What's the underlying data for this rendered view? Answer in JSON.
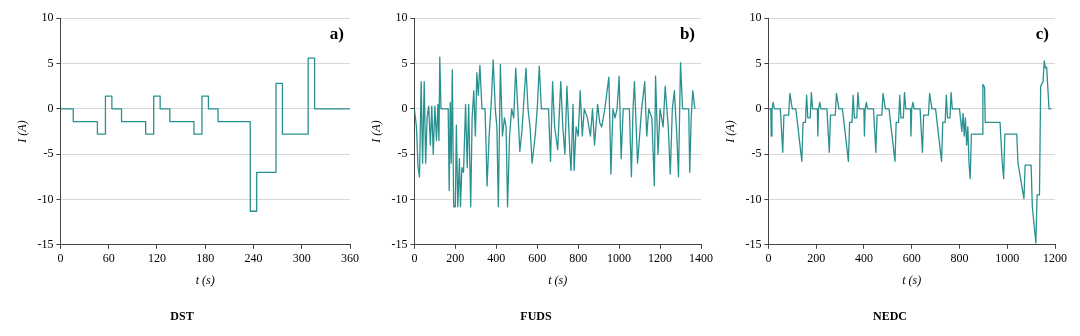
{
  "chart_data": [
    {
      "type": "line",
      "title": "DST",
      "xlabel": "t (s)",
      "ylabel": "I (A)",
      "annotations": [
        "a)"
      ],
      "grid": "y",
      "legend": false,
      "marker": "none",
      "line_style": "solid",
      "xlim": [
        0,
        360
      ],
      "xticks": [
        0,
        60,
        120,
        180,
        240,
        300,
        360
      ],
      "ylim": [
        -15,
        10
      ],
      "yticks": [
        -15,
        -10,
        -5,
        0,
        5,
        10
      ],
      "series": [
        {
          "color": "#2a9090",
          "x": [
            0,
            16,
            16,
            46,
            46,
            56,
            56,
            64,
            64,
            76,
            76,
            106,
            106,
            116,
            116,
            124,
            124,
            136,
            136,
            166,
            166,
            176,
            176,
            184,
            184,
            196,
            196,
            236,
            236,
            244,
            244,
            268,
            268,
            276,
            276,
            308,
            308,
            316,
            316,
            360
          ],
          "values": [
            0,
            0,
            -1.4,
            -1.4,
            -2.8,
            -2.8,
            1.4,
            1.4,
            0,
            0,
            -1.4,
            -1.4,
            -2.8,
            -2.8,
            1.4,
            1.4,
            0,
            0,
            -1.4,
            -1.4,
            -2.8,
            -2.8,
            1.4,
            1.4,
            0,
            0,
            -1.4,
            -1.4,
            -11.3,
            -11.3,
            -7,
            -7,
            2.8,
            2.8,
            -2.8,
            -2.8,
            5.6,
            5.6,
            0,
            0
          ]
        }
      ]
    },
    {
      "type": "line",
      "title": "FUDS",
      "xlabel": "t (s)",
      "ylabel": "I (A)",
      "annotations": [
        "b)"
      ],
      "grid": "y",
      "legend": false,
      "marker": "none",
      "line_style": "solid",
      "xlim": [
        0,
        1400
      ],
      "xticks": [
        0,
        200,
        400,
        600,
        800,
        1000,
        1200,
        1400
      ],
      "ylim": [
        -15,
        10
      ],
      "yticks": [
        -15,
        -10,
        -5,
        0,
        5,
        10
      ],
      "series": [
        {
          "color": "#2a9090",
          "x": [
            0,
            10,
            18,
            25,
            33,
            40,
            48,
            55,
            62,
            70,
            78,
            85,
            92,
            100,
            108,
            115,
            120,
            124,
            130,
            165,
            170,
            175,
            180,
            185,
            192,
            200,
            205,
            212,
            220,
            225,
            232,
            240,
            250,
            258,
            265,
            275,
            282,
            290,
            298,
            305,
            312,
            320,
            330,
            345,
            350,
            355,
            365,
            375,
            385,
            395,
            403,
            410,
            420,
            430,
            440,
            448,
            455,
            465,
            475,
            485,
            495,
            505,
            515,
            525,
            545,
            555,
            565,
            575,
            590,
            600,
            610,
            620,
            655,
            665,
            675,
            685,
            700,
            715,
            725,
            735,
            745,
            760,
            765,
            775,
            780,
            790,
            800,
            810,
            820,
            830,
            845,
            860,
            870,
            880,
            895,
            905,
            915,
            930,
            950,
            960,
            970,
            980,
            990,
            1000,
            1010,
            1020,
            1050,
            1060,
            1068,
            1075,
            1090,
            1100,
            1110,
            1125,
            1135,
            1145,
            1160,
            1172,
            1178,
            1190,
            1200,
            1215,
            1225,
            1240,
            1250,
            1260,
            1270,
            1282,
            1290,
            1300,
            1310,
            1340,
            1345,
            1352,
            1360,
            1370
          ],
          "values": [
            0,
            -2,
            -6.5,
            -7.5,
            3,
            -6,
            3,
            -6,
            -1,
            0.3,
            -4,
            0.3,
            -5,
            0.3,
            -3.5,
            0.5,
            -3.5,
            5.7,
            0,
            0,
            -9,
            0.7,
            -6,
            4.3,
            -10.8,
            -10.8,
            -1.8,
            -10.8,
            -5.5,
            -10.8,
            -6.5,
            -7,
            0.5,
            -6.5,
            0.5,
            -10.8,
            -1,
            2,
            -3,
            4,
            1.5,
            4.8,
            0,
            0,
            -4,
            -8.5,
            -3,
            0.5,
            5.4,
            0,
            -2,
            -10.8,
            4.9,
            -3,
            -1,
            -2,
            -10.8,
            -3,
            0,
            -1,
            4.5,
            0,
            -4.7,
            -2.5,
            4.5,
            0,
            -2,
            -6,
            -3,
            0,
            4.7,
            0,
            0,
            -5.8,
            3,
            -2,
            -4.5,
            3,
            -2,
            -5,
            2.5,
            -5,
            -6.8,
            0.5,
            -6.8,
            -2,
            -3,
            2,
            -3,
            0,
            -1,
            -3,
            0,
            -4,
            0.5,
            -1.5,
            -2,
            0,
            3.5,
            -7.2,
            0,
            -1,
            0,
            3.6,
            -5.5,
            0,
            0,
            -7.5,
            0,
            3,
            -6,
            -3,
            0,
            3,
            -3,
            0,
            -1,
            -8.5,
            3.6,
            -5,
            0,
            -2,
            2.5,
            -2,
            -7.2,
            0,
            2,
            -3,
            -7.5,
            5.1,
            0,
            0,
            -7,
            -1,
            2,
            0
          ]
        }
      ]
    },
    {
      "type": "line",
      "title": "NEDC",
      "xlabel": "t (s)",
      "ylabel": "I (A)",
      "annotations": [
        "c)"
      ],
      "grid": "y",
      "legend": false,
      "marker": "none",
      "line_style": "solid",
      "xlim": [
        0,
        1200
      ],
      "xticks": [
        0,
        200,
        400,
        600,
        800,
        1000,
        1200
      ],
      "ylim": [
        -15,
        10
      ],
      "yticks": [
        -15,
        -10,
        -5,
        0,
        5,
        10
      ],
      "series": [
        {
          "color": "#2a9090",
          "x": [
            0,
            10,
            12,
            15,
            20,
            25,
            50,
            60,
            65,
            85,
            90,
            100,
            115,
            140,
            145,
            155,
            160,
            165,
            175,
            180,
            185,
            205,
            207,
            210,
            215,
            220,
            245,
            255,
            260,
            280,
            285,
            295,
            310,
            335,
            340,
            350,
            355,
            360,
            370,
            375,
            380,
            400,
            402,
            405,
            410,
            415,
            440,
            450,
            455,
            475,
            480,
            490,
            505,
            530,
            535,
            545,
            550,
            555,
            565,
            570,
            575,
            595,
            597,
            600,
            605,
            610,
            635,
            645,
            650,
            670,
            675,
            685,
            700,
            725,
            730,
            740,
            745,
            750,
            760,
            765,
            770,
            780,
            800,
            810,
            815,
            820,
            825,
            830,
            835,
            840,
            845,
            850,
            895,
            898,
            905,
            908,
            970,
            978,
            985,
            990,
            1040,
            1045,
            1070,
            1075,
            1100,
            1105,
            1120,
            1125,
            1135,
            1140,
            1150,
            1155,
            1160,
            1165,
            1175,
            1185
          ],
          "values": [
            0,
            0,
            -3,
            0,
            0.7,
            0,
            0,
            -4.8,
            -0.7,
            -0.7,
            1.7,
            0,
            0,
            -5.8,
            -1.5,
            -1.5,
            1.5,
            -1,
            -1,
            1.8,
            0,
            0,
            -3,
            0,
            0.7,
            0,
            0,
            -4.8,
            -0.7,
            -0.7,
            1.7,
            0,
            0,
            -5.8,
            -1.5,
            -1.5,
            1.5,
            -1,
            -1,
            1.8,
            0,
            0,
            -3,
            0,
            0.7,
            0,
            0,
            -4.8,
            -0.7,
            -0.7,
            1.7,
            0,
            0,
            -5.8,
            -1.5,
            -1.5,
            1.5,
            -1,
            -1,
            1.8,
            0,
            0,
            -3,
            0,
            0.7,
            0,
            0,
            -4.8,
            -0.7,
            -0.7,
            1.7,
            0,
            0,
            -5.8,
            -1.5,
            -1.5,
            1.5,
            -1,
            -1,
            1.8,
            0,
            0,
            0,
            -2.5,
            -0.5,
            -3,
            -1,
            -4,
            -2,
            -6,
            -7.7,
            -2.8,
            -2.8,
            2.7,
            2.4,
            -1.5,
            -1.5,
            -5.5,
            -7.7,
            -2.8,
            -2.8,
            -6,
            -9.9,
            -6.2,
            -6.2,
            -10.8,
            -14.8,
            -9.5,
            -9.5,
            2.5,
            3,
            5.3,
            4.5,
            4.6,
            0,
            0
          ]
        }
      ]
    }
  ]
}
